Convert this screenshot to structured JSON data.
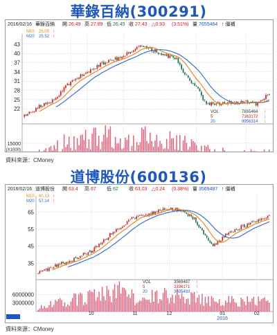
{
  "charts": [
    {
      "title": "華錄百納(300291)",
      "header": {
        "date": "2016/02/16",
        "name": "華錄百納",
        "open_label": "開",
        "open": "26.49",
        "high_label": "高",
        "high": "27.89",
        "low_label": "低",
        "low": "26.45",
        "close_label": "收",
        "close": "27.43",
        "change": "△0.93",
        "change_pct": "(3.51%)",
        "vol_label": "量",
        "vol": "7655464",
        "flag": "↑ 僵補"
      },
      "ma_legend": [
        {
          "label": "M10",
          "value": "25.05",
          "arrow": "↑",
          "color": "#e8820a"
        },
        {
          "label": "M20",
          "value": "25.52",
          "arrow": "↑",
          "color": "#2566d6"
        }
      ],
      "vol_legend": [
        {
          "label": "VOL",
          "value": "7655464",
          "arrow": "↑",
          "color": "#333333"
        },
        {
          "label": "5",
          "value": "7163172",
          "arrow": "↓",
          "color": "#d2141c"
        },
        {
          "label": "20",
          "value": "9956314",
          "arrow": "↓",
          "color": "#1d57c4"
        }
      ],
      "vol_axis_label": "15000",
      "vol_axis_unit": "(X1000)",
      "month_labels": [
        "10",
        "11",
        "12",
        "01",
        "02"
      ],
      "year_label": "2016",
      "source": "資料來源：CMoney"
    },
    {
      "title": "道博股份(600136)",
      "header": {
        "date": "2016/02/16",
        "name": "道博股份",
        "open_label": "開",
        "open": "63.4",
        "high_label": "高",
        "high": "67",
        "low_label": "低",
        "low": "62",
        "close_label": "收",
        "close": "63.03",
        "change": "△0.24",
        "change_pct": "(0.38%)",
        "vol_label": "量",
        "vol": "3569487",
        "flag": "↑ 僵補"
      },
      "ma_legend": [
        {
          "label": "M10",
          "value": "60.13",
          "arrow": "↑",
          "color": "#e8820a"
        },
        {
          "label": "M20",
          "value": "57.14",
          "arrow": "↑",
          "color": "#2566d6"
        }
      ],
      "vol_legend": [
        {
          "label": "VOL",
          "value": "3569487",
          "arrow": "↑",
          "color": "#333333"
        },
        {
          "label": "5",
          "value": "3336171",
          "arrow": "↑",
          "color": "#d2141c"
        },
        {
          "label": "20",
          "value": "3695493",
          "arrow": "↓",
          "color": "#1d57c4"
        }
      ],
      "month_labels": [
        "10",
        "11",
        "12",
        "01",
        "02"
      ],
      "year_label": "2016",
      "source": "資料來源：CMoney"
    }
  ],
  "colors": {
    "up": "#e0141c",
    "down": "#13704a",
    "ma10": "#e8820a",
    "ma20": "#2566d6",
    "vol": "#e8607a"
  },
  "chart_data": [
    {
      "type": "candlestick",
      "y_ticks": [
        22,
        25,
        28,
        31,
        34,
        37,
        40,
        43
      ],
      "ylim": [
        18,
        45
      ],
      "vol_ticks": [
        15000000
      ],
      "vol_max": 28000000,
      "seed": 7,
      "trend": [
        [
          0,
          19.5
        ],
        [
          8,
          22.5
        ],
        [
          14,
          24
        ],
        [
          20,
          26
        ],
        [
          28,
          31
        ],
        [
          38,
          34
        ],
        [
          48,
          37
        ],
        [
          58,
          38.5
        ],
        [
          62,
          40
        ],
        [
          72,
          42.5
        ],
        [
          82,
          40
        ],
        [
          92,
          38
        ],
        [
          96,
          34
        ],
        [
          104,
          29
        ],
        [
          110,
          23.5
        ],
        [
          122,
          23.8
        ],
        [
          134,
          24.5
        ],
        [
          140,
          23.5
        ],
        [
          148,
          27
        ]
      ],
      "volume_trend": [
        [
          0,
          3200000
        ],
        [
          12,
          7000000
        ],
        [
          25,
          16000000
        ],
        [
          40,
          18000000
        ],
        [
          50,
          23000000
        ],
        [
          60,
          14000000
        ],
        [
          75,
          21000000
        ],
        [
          90,
          16000000
        ],
        [
          104,
          12000000
        ],
        [
          116,
          8000000
        ],
        [
          130,
          5500000
        ],
        [
          148,
          7655464
        ]
      ],
      "months": [
        {
          "label": "10",
          "index": 28
        },
        {
          "label": "11",
          "index": 38
        },
        {
          "label": "12",
          "index": 60
        },
        {
          "label": "01",
          "index": 104
        },
        {
          "label": "02",
          "index": 134
        }
      ],
      "year": {
        "label": "2016",
        "index": 104
      },
      "n": 149
    },
    {
      "type": "candlestick",
      "y_ticks": [
        35,
        45,
        55,
        65
      ],
      "ylim": [
        27,
        72
      ],
      "vol_ticks": [
        3000000,
        6000000
      ],
      "vol_max": 10000000,
      "seed": 13,
      "trend": [
        [
          0,
          29
        ],
        [
          10,
          33
        ],
        [
          22,
          37
        ],
        [
          34,
          42
        ],
        [
          44,
          50
        ],
        [
          52,
          56
        ],
        [
          62,
          62
        ],
        [
          72,
          64
        ],
        [
          82,
          67
        ],
        [
          92,
          66
        ],
        [
          100,
          61
        ],
        [
          106,
          52
        ],
        [
          112,
          45
        ],
        [
          120,
          52
        ],
        [
          132,
          57
        ],
        [
          142,
          60
        ],
        [
          148,
          63
        ]
      ],
      "volume_trend": [
        [
          0,
          1200000
        ],
        [
          10,
          2800000
        ],
        [
          25,
          4500000
        ],
        [
          40,
          5500000
        ],
        [
          52,
          7000000
        ],
        [
          64,
          4500000
        ],
        [
          80,
          5800000
        ],
        [
          96,
          5000000
        ],
        [
          110,
          4200000
        ],
        [
          128,
          3600000
        ],
        [
          148,
          3569487
        ]
      ],
      "months": [
        {
          "label": "10",
          "index": 34
        },
        {
          "label": "11",
          "index": 62
        },
        {
          "label": "12",
          "index": 84
        },
        {
          "label": "01",
          "index": 118
        },
        {
          "label": "02",
          "index": 140
        }
      ],
      "year": {
        "label": "2016",
        "index": 118
      },
      "n": 149
    }
  ]
}
